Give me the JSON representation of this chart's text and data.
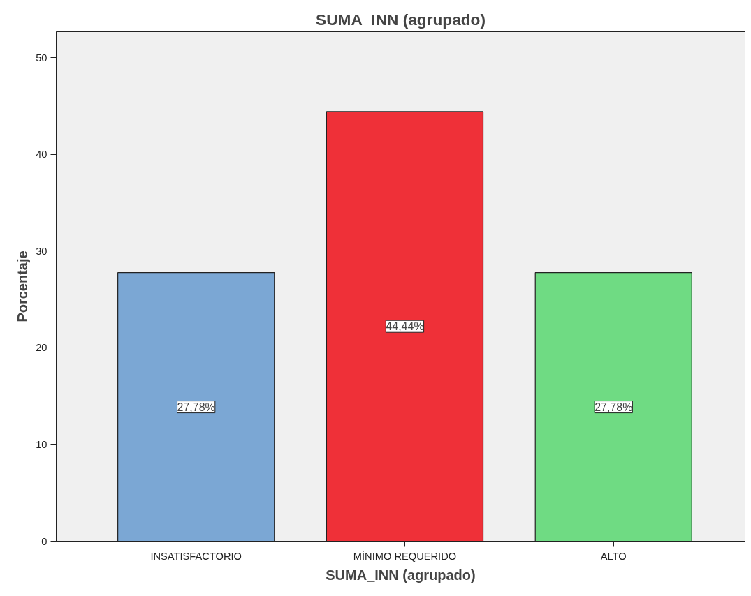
{
  "chart_data": {
    "type": "bar",
    "title": "SUMA_INN (agrupado)",
    "xlabel": "SUMA_INN (agrupado)",
    "ylabel": "Porcentaje",
    "categories": [
      "INSATISFACTORIO",
      "MÍNIMO REQUERIDO",
      "ALTO"
    ],
    "values": [
      27.78,
      44.44,
      27.78
    ],
    "colors": [
      "#7ba7d4",
      "#ef3038",
      "#6fdb83"
    ],
    "value_labels": [
      "27,78%",
      "44,44%",
      "27,78%"
    ],
    "ylim": [
      0,
      52.7
    ],
    "yticks": [
      0,
      10,
      20,
      30,
      40,
      50
    ],
    "grid": false
  }
}
